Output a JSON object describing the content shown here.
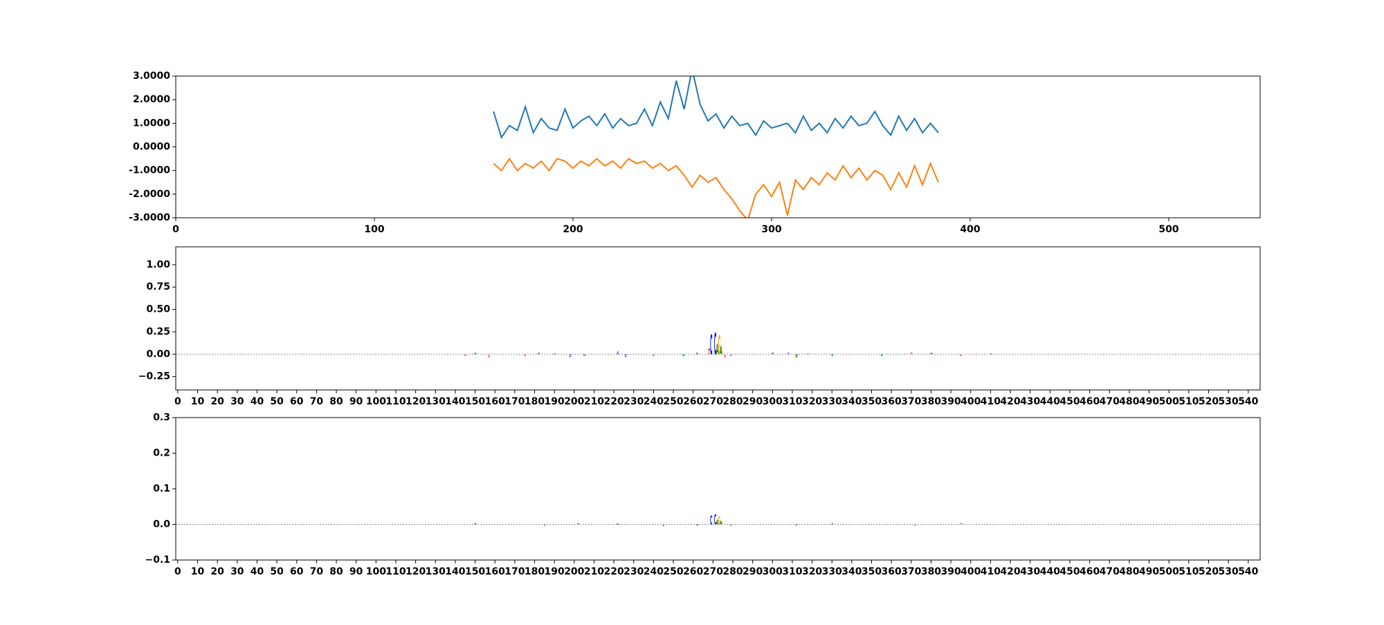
{
  "chart_data": [
    {
      "type": "line",
      "x": [
        160,
        164,
        168,
        172,
        176,
        180,
        184,
        188,
        192,
        196,
        200,
        204,
        208,
        212,
        216,
        220,
        224,
        228,
        232,
        236,
        240,
        244,
        248,
        252,
        256,
        260,
        264,
        268,
        272,
        276,
        280,
        284,
        288,
        292,
        296,
        300,
        304,
        308,
        312,
        316,
        320,
        324,
        328,
        332,
        336,
        340,
        344,
        348,
        352,
        356,
        360,
        364,
        368,
        372,
        376,
        380,
        384
      ],
      "series": [
        {
          "color": "#1f77b4",
          "values": [
            1.5,
            0.4,
            0.9,
            0.7,
            1.7,
            0.6,
            1.2,
            0.8,
            0.7,
            1.6,
            0.8,
            1.1,
            1.3,
            0.9,
            1.4,
            0.8,
            1.2,
            0.9,
            1.0,
            1.6,
            0.9,
            1.9,
            1.2,
            2.8,
            1.6,
            3.3,
            1.8,
            1.1,
            1.4,
            0.8,
            1.3,
            0.9,
            1.0,
            0.5,
            1.1,
            0.8,
            0.9,
            1.0,
            0.6,
            1.3,
            0.7,
            1.0,
            0.6,
            1.2,
            0.8,
            1.3,
            0.9,
            1.0,
            1.5,
            0.9,
            0.5,
            1.3,
            0.7,
            1.2,
            0.6,
            1.0,
            0.6
          ]
        },
        {
          "color": "#ff7f0e",
          "values": [
            -0.7,
            -1.0,
            -0.5,
            -1.0,
            -0.7,
            -0.9,
            -0.6,
            -1.0,
            -0.5,
            -0.6,
            -0.9,
            -0.6,
            -0.8,
            -0.5,
            -0.8,
            -0.6,
            -0.9,
            -0.5,
            -0.7,
            -0.6,
            -0.9,
            -0.7,
            -1.0,
            -0.8,
            -1.2,
            -1.7,
            -1.2,
            -1.5,
            -1.3,
            -1.8,
            -2.2,
            -2.7,
            -3.1,
            -2.0,
            -1.6,
            -2.1,
            -1.5,
            -2.9,
            -1.4,
            -1.8,
            -1.3,
            -1.6,
            -1.1,
            -1.4,
            -0.8,
            -1.3,
            -0.9,
            -1.4,
            -1.0,
            -1.2,
            -1.8,
            -1.1,
            -1.7,
            -0.8,
            -1.6,
            -0.7,
            -1.5
          ]
        }
      ],
      "xlim": [
        0,
        546
      ],
      "xticks": [
        0,
        100,
        200,
        300,
        400,
        500
      ],
      "ylim": [
        -3,
        3
      ],
      "yticks": [
        {
          "value": 3,
          "label": "3.0000"
        },
        {
          "value": 2,
          "label": "2.0000"
        },
        {
          "value": 1,
          "label": "1.0000"
        },
        {
          "value": 0,
          "label": "0.0000"
        },
        {
          "value": -1,
          "label": "-1.0000"
        },
        {
          "value": -2,
          "label": "-2.0000"
        },
        {
          "value": -3,
          "label": "-3.0000"
        }
      ]
    },
    {
      "type": "logo",
      "colors": {
        "A": "#008000",
        "C": "#0000ff",
        "G": "#ffa500",
        "T": "#ff0000"
      },
      "letters": [
        {
          "x": 145,
          "char": "T",
          "value": -0.02
        },
        {
          "x": 150,
          "char": "A",
          "value": 0.02
        },
        {
          "x": 157,
          "char": "T",
          "value": -0.03
        },
        {
          "x": 175,
          "char": "T",
          "value": -0.02
        },
        {
          "x": 182,
          "char": "A",
          "value": 0.02
        },
        {
          "x": 190,
          "char": "A",
          "value": 0.01
        },
        {
          "x": 198,
          "char": "C",
          "value": -0.03
        },
        {
          "x": 205,
          "char": "A",
          "value": -0.02
        },
        {
          "x": 222,
          "char": "C",
          "value": 0.03
        },
        {
          "x": 226,
          "char": "C",
          "value": -0.03
        },
        {
          "x": 240,
          "char": "T",
          "value": -0.02
        },
        {
          "x": 255,
          "char": "A",
          "value": -0.02
        },
        {
          "x": 262,
          "char": "C",
          "value": 0.02
        },
        {
          "x": 268,
          "char": "T",
          "value": 0.06
        },
        {
          "x": 269,
          "char": "C",
          "value": 0.22
        },
        {
          "x": 271,
          "char": "C",
          "value": 0.24
        },
        {
          "x": 272,
          "char": "A",
          "value": 0.12
        },
        {
          "x": 273,
          "char": "G",
          "value": 0.21
        },
        {
          "x": 274,
          "char": "A",
          "value": 0.09
        },
        {
          "x": 276,
          "char": "T",
          "value": -0.03
        },
        {
          "x": 279,
          "char": "T",
          "value": -0.02
        },
        {
          "x": 300,
          "char": "A",
          "value": 0.02
        },
        {
          "x": 308,
          "char": "C",
          "value": 0.02
        },
        {
          "x": 312,
          "char": "A",
          "value": -0.04
        },
        {
          "x": 318,
          "char": "T",
          "value": 0.01
        },
        {
          "x": 330,
          "char": "A",
          "value": -0.02
        },
        {
          "x": 355,
          "char": "A",
          "value": -0.02
        },
        {
          "x": 370,
          "char": "T",
          "value": 0.02
        },
        {
          "x": 380,
          "char": "A",
          "value": 0.02
        },
        {
          "x": 395,
          "char": "T",
          "value": -0.02
        },
        {
          "x": 410,
          "char": "A",
          "value": 0.01
        }
      ],
      "xlim": [
        -1,
        546
      ],
      "xticks": [
        0,
        10,
        20,
        30,
        40,
        50,
        60,
        70,
        80,
        90,
        100,
        110,
        120,
        130,
        140,
        150,
        160,
        170,
        180,
        190,
        200,
        210,
        220,
        230,
        240,
        250,
        260,
        270,
        280,
        290,
        300,
        310,
        320,
        330,
        340,
        350,
        360,
        370,
        380,
        390,
        400,
        410,
        420,
        430,
        440,
        450,
        460,
        470,
        480,
        490,
        500,
        510,
        520,
        530,
        540
      ],
      "ylim": [
        -0.4,
        1.2
      ],
      "yticks": [
        {
          "value": 1,
          "label": "1.00"
        },
        {
          "value": 0.75,
          "label": "0.75"
        },
        {
          "value": 0.5,
          "label": "0.50"
        },
        {
          "value": 0.25,
          "label": "0.25"
        },
        {
          "value": 0,
          "label": "0.00"
        },
        {
          "value": -0.25,
          "label": "−0.25"
        }
      ]
    },
    {
      "type": "logo",
      "colors": {
        "A": "#008000",
        "C": "#0000ff",
        "G": "#ffa500",
        "T": "#ff0000"
      },
      "letters": [
        {
          "x": 150,
          "char": "A",
          "value": 0.003
        },
        {
          "x": 185,
          "char": "T",
          "value": -0.003
        },
        {
          "x": 202,
          "char": "A",
          "value": 0.004
        },
        {
          "x": 222,
          "char": "C",
          "value": 0.003
        },
        {
          "x": 245,
          "char": "T",
          "value": -0.005
        },
        {
          "x": 262,
          "char": "A",
          "value": -0.003
        },
        {
          "x": 269,
          "char": "C",
          "value": 0.025
        },
        {
          "x": 271,
          "char": "C",
          "value": 0.027
        },
        {
          "x": 272,
          "char": "A",
          "value": 0.014
        },
        {
          "x": 273,
          "char": "G",
          "value": 0.022
        },
        {
          "x": 274,
          "char": "A",
          "value": 0.01
        },
        {
          "x": 279,
          "char": "T",
          "value": -0.004
        },
        {
          "x": 312,
          "char": "A",
          "value": -0.004
        },
        {
          "x": 330,
          "char": "A",
          "value": 0.003
        },
        {
          "x": 372,
          "char": "T",
          "value": -0.004
        },
        {
          "x": 395,
          "char": "A",
          "value": 0.003
        }
      ],
      "xlim": [
        -1,
        546
      ],
      "xticks": [
        0,
        10,
        20,
        30,
        40,
        50,
        60,
        70,
        80,
        90,
        100,
        110,
        120,
        130,
        140,
        150,
        160,
        170,
        180,
        190,
        200,
        210,
        220,
        230,
        240,
        250,
        260,
        270,
        280,
        290,
        300,
        310,
        320,
        330,
        340,
        350,
        360,
        370,
        380,
        390,
        400,
        410,
        420,
        430,
        440,
        450,
        460,
        470,
        480,
        490,
        500,
        510,
        520,
        530,
        540
      ],
      "ylim": [
        -0.1,
        0.3
      ],
      "yticks": [
        0.3,
        0.2,
        0.1,
        {
          "value": 0,
          "label": "0.0"
        },
        {
          "value": -0.1,
          "label": "−0.1"
        }
      ]
    }
  ]
}
